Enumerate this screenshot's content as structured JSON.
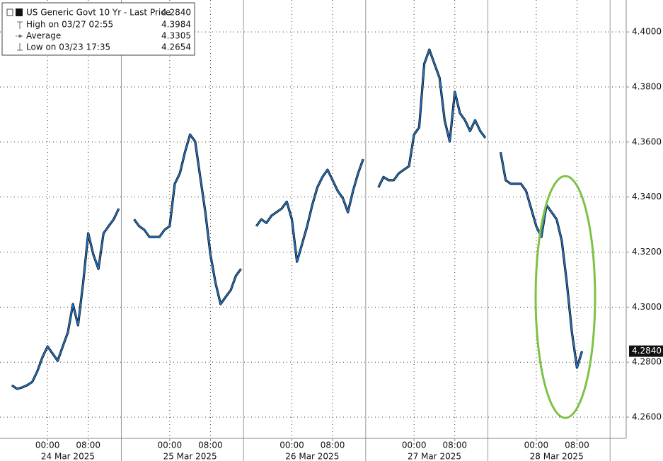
{
  "chart_data": {
    "type": "line",
    "series": [
      {
        "name": "US Generic Govt 10 Yr - Last Price",
        "color": "#1f78d1",
        "x": [
          "23 Mar 2025 17:00",
          "23 Mar 2025 18:00",
          "23 Mar 2025 19:00",
          "23 Mar 2025 20:00",
          "23 Mar 2025 21:00",
          "23 Mar 2025 22:00",
          "23 Mar 2025 23:00",
          "24 Mar 2025 00:00",
          "24 Mar 2025 01:00",
          "24 Mar 2025 02:00",
          "24 Mar 2025 03:00",
          "24 Mar 2025 04:00",
          "24 Mar 2025 05:00",
          "24 Mar 2025 06:00",
          "24 Mar 2025 07:00",
          "24 Mar 2025 08:00",
          "24 Mar 2025 09:00",
          "24 Mar 2025 10:00",
          "24 Mar 2025 11:00",
          "24 Mar 2025 12:00",
          "24 Mar 2025 13:00",
          "24 Mar 2025 14:00",
          "24 Mar 2025 15:00",
          "24 Mar 2025 16:00",
          "24 Mar 2025 17:00",
          "24 Mar 2025 18:00",
          "24 Mar 2025 19:00",
          "24 Mar 2025 20:00",
          "24 Mar 2025 21:00",
          "24 Mar 2025 22:00",
          "24 Mar 2025 23:00",
          "25 Mar 2025 00:00",
          "25 Mar 2025 01:00",
          "25 Mar 2025 02:00",
          "25 Mar 2025 03:00",
          "25 Mar 2025 04:00",
          "25 Mar 2025 05:00",
          "25 Mar 2025 06:00",
          "25 Mar 2025 07:00",
          "25 Mar 2025 08:00",
          "25 Mar 2025 09:00",
          "25 Mar 2025 10:00",
          "25 Mar 2025 11:00",
          "25 Mar 2025 12:00",
          "25 Mar 2025 13:00",
          "25 Mar 2025 14:00",
          "25 Mar 2025 15:00",
          "25 Mar 2025 16:00",
          "25 Mar 2025 17:00",
          "25 Mar 2025 18:00",
          "25 Mar 2025 19:00",
          "25 Mar 2025 20:00",
          "25 Mar 2025 21:00",
          "25 Mar 2025 22:00",
          "25 Mar 2025 23:00",
          "26 Mar 2025 00:00",
          "26 Mar 2025 01:00",
          "26 Mar 2025 02:00",
          "26 Mar 2025 03:00",
          "26 Mar 2025 04:00",
          "26 Mar 2025 05:00",
          "26 Mar 2025 06:00",
          "26 Mar 2025 07:00",
          "26 Mar 2025 08:00",
          "26 Mar 2025 09:00",
          "26 Mar 2025 10:00",
          "26 Mar 2025 11:00",
          "26 Mar 2025 12:00",
          "26 Mar 2025 13:00",
          "26 Mar 2025 14:00",
          "26 Mar 2025 15:00",
          "26 Mar 2025 16:00",
          "26 Mar 2025 17:00",
          "26 Mar 2025 18:00",
          "26 Mar 2025 19:00",
          "26 Mar 2025 20:00",
          "26 Mar 2025 21:00",
          "26 Mar 2025 22:00",
          "26 Mar 2025 23:00",
          "27 Mar 2025 00:00",
          "27 Mar 2025 01:00",
          "27 Mar 2025 02:00",
          "27 Mar 2025 03:00",
          "27 Mar 2025 04:00",
          "27 Mar 2025 05:00",
          "27 Mar 2025 06:00",
          "27 Mar 2025 07:00",
          "27 Mar 2025 08:00",
          "27 Mar 2025 09:00",
          "27 Mar 2025 10:00",
          "27 Mar 2025 11:00",
          "27 Mar 2025 12:00",
          "27 Mar 2025 13:00",
          "27 Mar 2025 14:00",
          "27 Mar 2025 15:00",
          "27 Mar 2025 16:00",
          "27 Mar 2025 17:00",
          "27 Mar 2025 18:00",
          "27 Mar 2025 19:00",
          "27 Mar 2025 20:00",
          "27 Mar 2025 21:00",
          "27 Mar 2025 22:00",
          "27 Mar 2025 23:00",
          "28 Mar 2025 00:00",
          "28 Mar 2025 01:00",
          "28 Mar 2025 02:00",
          "28 Mar 2025 03:00",
          "28 Mar 2025 04:00",
          "28 Mar 2025 05:00",
          "28 Mar 2025 06:00",
          "28 Mar 2025 07:00",
          "28 Mar 2025 08:00",
          "28 Mar 2025 09:00"
        ],
        "values": [
          4.2716,
          4.2703,
          4.2708,
          4.2716,
          4.2728,
          4.2767,
          4.2818,
          4.2857,
          4.2831,
          4.2805,
          4.2857,
          4.2908,
          4.3011,
          4.2934,
          4.3088,
          4.3268,
          4.3191,
          4.3139,
          4.3268,
          4.3294,
          4.3319,
          4.3358,
          null,
          null,
          4.3319,
          4.3294,
          4.3281,
          4.3255,
          4.3255,
          4.3255,
          4.3281,
          4.3294,
          4.3448,
          4.3486,
          4.3563,
          4.3627,
          4.3602,
          4.3473,
          4.3345,
          4.3191,
          4.3088,
          4.3011,
          4.3037,
          4.3062,
          4.3114,
          4.3139,
          null,
          null,
          4.3294,
          4.3319,
          4.3306,
          4.3332,
          4.3345,
          4.3358,
          4.3383,
          4.3319,
          4.3165,
          4.3229,
          4.3294,
          4.3371,
          4.3435,
          4.3473,
          4.3499,
          4.3461,
          4.3422,
          4.3396,
          4.3345,
          4.3422,
          4.3486,
          4.3538,
          null,
          null,
          4.3435,
          4.3473,
          4.3461,
          4.3461,
          4.3486,
          4.3499,
          4.3512,
          4.3627,
          4.3653,
          4.3884,
          4.3936,
          4.3884,
          4.3833,
          4.3679,
          4.3602,
          4.3782,
          4.3705,
          4.3679,
          4.364,
          4.3679,
          4.364,
          4.3615,
          null,
          null,
          4.3563,
          4.3461,
          4.3448,
          4.3448,
          4.3448,
          4.3422,
          4.3358,
          4.3294,
          4.3255,
          4.3371,
          4.3345,
          4.3319,
          4.3242,
          4.3088,
          4.2908,
          4.278,
          4.284
        ]
      }
    ],
    "legend": [
      {
        "label": "High on 03/27 02:55",
        "value": 4.3984
      },
      {
        "label": "Average",
        "value": 4.3305
      },
      {
        "label": "Low on 03/23 17:35",
        "value": 4.2654
      }
    ],
    "last": {
      "value": 4.284,
      "label": "4.2840"
    },
    "xlim": [
      "23 Mar 2025 14:40",
      "28 Mar 2025 17:40"
    ],
    "xticks": [
      {
        "value": "24 Mar 2025 00:00",
        "label": "00:00"
      },
      {
        "value": "24 Mar 2025 08:00",
        "label": "08:00"
      },
      {
        "value": "25 Mar 2025 00:00",
        "label": "00:00"
      },
      {
        "value": "25 Mar 2025 08:00",
        "label": "08:00"
      },
      {
        "value": "26 Mar 2025 00:00",
        "label": "00:00"
      },
      {
        "value": "26 Mar 2025 08:00",
        "label": "08:00"
      },
      {
        "value": "27 Mar 2025 00:00",
        "label": "00:00"
      },
      {
        "value": "27 Mar 2025 08:00",
        "label": "08:00"
      },
      {
        "value": "28 Mar 2025 00:00",
        "label": "00:00"
      },
      {
        "value": "28 Mar 2025 08:00",
        "label": "08:00"
      }
    ],
    "day_labels": [
      "24 Mar 2025",
      "25 Mar 2025",
      "26 Mar 2025",
      "27 Mar 2025",
      "28 Mar 2025"
    ],
    "ylim": [
      4.2523,
      4.4116
    ],
    "yticks": [
      {
        "value": 4.26,
        "label": "4.2600"
      },
      {
        "value": 4.28,
        "label": "4.2800"
      },
      {
        "value": 4.3,
        "label": "4.3000"
      },
      {
        "value": 4.32,
        "label": "4.3200"
      },
      {
        "value": 4.34,
        "label": "4.3400"
      },
      {
        "value": 4.36,
        "label": "4.3600"
      },
      {
        "value": 4.38,
        "label": "4.3800"
      },
      {
        "value": 4.4,
        "label": "4.4000"
      }
    ],
    "grid": true
  }
}
